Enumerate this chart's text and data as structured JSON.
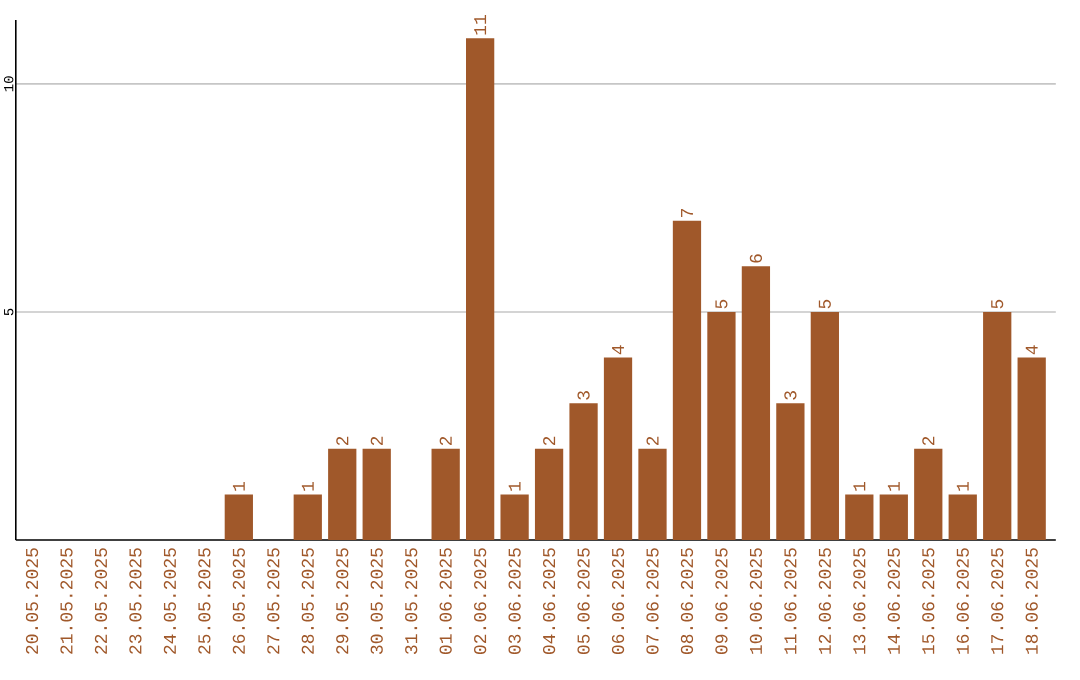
{
  "chart_data": {
    "type": "bar",
    "categories": [
      "20.05.2025",
      "21.05.2025",
      "22.05.2025",
      "23.05.2025",
      "24.05.2025",
      "25.05.2025",
      "26.05.2025",
      "27.05.2025",
      "28.05.2025",
      "29.05.2025",
      "30.05.2025",
      "31.05.2025",
      "01.06.2025",
      "02.06.2025",
      "03.06.2025",
      "04.06.2025",
      "05.06.2025",
      "06.06.2025",
      "07.06.2025",
      "08.06.2025",
      "09.06.2025",
      "10.06.2025",
      "11.06.2025",
      "12.06.2025",
      "13.06.2025",
      "14.06.2025",
      "15.06.2025",
      "16.06.2025",
      "17.06.2025",
      "18.06.2025"
    ],
    "values": [
      0,
      0,
      0,
      0,
      0,
      0,
      1,
      0,
      1,
      2,
      2,
      0,
      2,
      11,
      1,
      2,
      3,
      4,
      2,
      7,
      5,
      6,
      3,
      5,
      1,
      1,
      2,
      1,
      5,
      4
    ],
    "value_labels": [
      null,
      null,
      null,
      null,
      null,
      null,
      "1",
      null,
      "1",
      "2",
      "2",
      null,
      "2",
      "11",
      "1",
      "2",
      "3",
      "4",
      "2",
      "7",
      "5",
      "6",
      "3",
      "5",
      "1",
      "1",
      "2",
      "1",
      "5",
      "4"
    ],
    "color": "#a0582a",
    "ylim": [
      0,
      11.4
    ],
    "yticks": [
      5,
      10
    ],
    "grid": "y"
  }
}
